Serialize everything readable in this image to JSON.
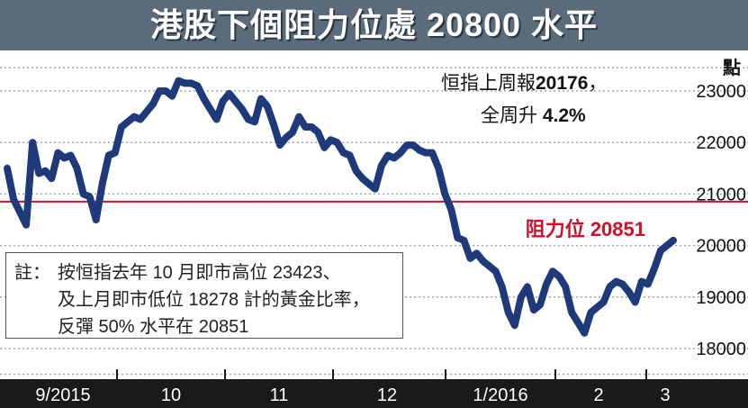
{
  "title": "港股下個阻力位處 20800 水平",
  "summary": {
    "line1_label": "恒指上周報",
    "line1_value": "20176",
    "line1_suffix": "，",
    "line2_label": "全周升",
    "line2_value": "4.2%"
  },
  "note": {
    "prefix": "註：",
    "lines": [
      "按恒指去年 10 月即市高位 23423、",
      "及上月即市低位 18278 計的黃金比率，",
      "反彈 50% 水平在 20851"
    ]
  },
  "colors": {
    "title_bg": "#5a6b7b",
    "line": "#1f3a7a",
    "resistance": "#d0102a",
    "axis_band": "#1a1a1a"
  },
  "chart_data": {
    "type": "line",
    "yunit": "點",
    "ylim": [
      17700,
      23450
    ],
    "yticks": [
      18000,
      19000,
      20000,
      21000,
      22000,
      23000
    ],
    "grid": true,
    "xcategories": [
      "9/2015",
      "10",
      "11",
      "12",
      "1/2016",
      "2",
      "3"
    ],
    "resistance": {
      "label": "阻力位 20851",
      "value": 20851
    },
    "series": [
      {
        "values": [
          21500,
          20900,
          20650,
          20400,
          22000,
          21400,
          21450,
          21300,
          21800,
          21700,
          21750,
          21500,
          21000,
          20950,
          20500,
          21200,
          21750,
          21800,
          22300,
          22400,
          22500,
          22450,
          22600,
          22750,
          23000,
          23000,
          22900,
          23200,
          23150,
          23150,
          23100,
          22850,
          22650,
          22450,
          22800,
          22950,
          22800,
          22650,
          22450,
          22400,
          22850,
          22700,
          22350,
          21950,
          22100,
          22200,
          22500,
          22300,
          22300,
          22200,
          21900,
          22050,
          22000,
          21800,
          21750,
          21450,
          21300,
          21200,
          21100,
          21550,
          21750,
          21700,
          21800,
          21950,
          21950,
          21850,
          21800,
          21800,
          21500,
          21000,
          20700,
          20150,
          20100,
          19750,
          19850,
          19700,
          19600,
          19500,
          19200,
          18700,
          18450,
          19000,
          19200,
          18750,
          18850,
          19250,
          19500,
          19400,
          19200,
          18700,
          18500,
          18300,
          18700,
          18800,
          18900,
          19200,
          19300,
          19250,
          19100,
          18900,
          19300,
          19250,
          19550,
          19900,
          20000,
          20100
        ]
      }
    ]
  }
}
